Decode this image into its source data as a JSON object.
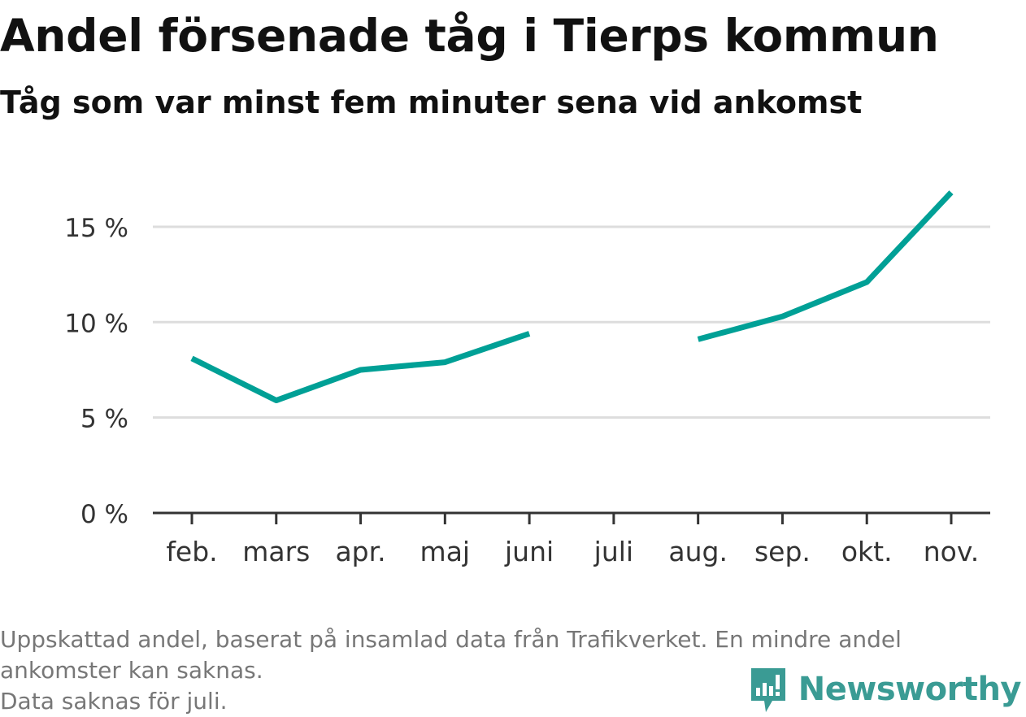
{
  "title": "Andel försenade tåg i Tierps kommun",
  "subtitle": "Tåg som var minst fem minuter sena vid ankomst",
  "footnote": {
    "line1": "Uppskattad andel, baserat på insamlad data från Trafikverket. En mindre andel",
    "line2": "ankomster kan saknas.",
    "line3": "Data saknas för juli."
  },
  "brand": {
    "name": "Newsworthy",
    "icon": "newsworthy-logo-icon",
    "color": "#3a9b94"
  },
  "chart_data": {
    "type": "line",
    "title": "Andel försenade tåg i Tierps kommun",
    "subtitle": "Tåg som var minst fem minuter sena vid ankomst",
    "categories": [
      "feb.",
      "mars",
      "apr.",
      "maj",
      "juni",
      "juli",
      "aug.",
      "sep.",
      "okt.",
      "nov."
    ],
    "series": [
      {
        "values": [
          8.1,
          5.9,
          7.5,
          7.9,
          9.4,
          null,
          9.1,
          10.3,
          12.1,
          16.8
        ],
        "color": "#00a096"
      }
    ],
    "yticks": [
      0,
      5,
      10,
      15
    ],
    "ytick_labels": [
      "0 %",
      "5 %",
      "10 %",
      "15 %"
    ],
    "ylim": [
      0,
      18
    ],
    "grid": true,
    "axis_color": "#333333",
    "grid_color": "#dddddd"
  }
}
